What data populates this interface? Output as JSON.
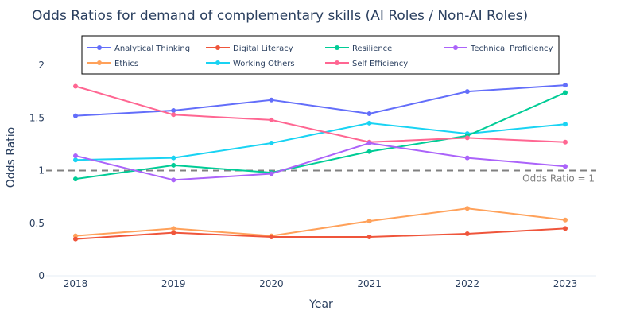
{
  "chart_data": {
    "type": "line",
    "title": "Odds Ratios for demand of complementary skills (AI Roles / Non-AI Roles)",
    "xlabel": "Year",
    "ylabel": "Odds Ratio",
    "x": [
      "2018",
      "2019",
      "2020",
      "2021",
      "2022",
      "2023"
    ],
    "ylim": [
      0,
      2.3
    ],
    "yticks": [
      "0",
      "0.5",
      "1",
      "1.5",
      "2"
    ],
    "grid": false,
    "legend_position": "top",
    "reference_line": {
      "y": 1,
      "label": "Odds Ratio = 1",
      "color": "#808080"
    },
    "series": [
      {
        "name": "Analytical Thinking",
        "color": "#636efa",
        "values": [
          1.52,
          1.57,
          1.67,
          1.54,
          1.75,
          1.81
        ]
      },
      {
        "name": "Ethics",
        "color": "#ffa15a",
        "values": [
          0.38,
          0.45,
          0.38,
          0.52,
          0.64,
          0.53
        ]
      },
      {
        "name": "Digital Literacy",
        "color": "#ef553b",
        "values": [
          0.35,
          0.41,
          0.37,
          0.37,
          0.4,
          0.45
        ]
      },
      {
        "name": "Working Others",
        "color": "#19d3f3",
        "values": [
          1.1,
          1.12,
          1.26,
          1.45,
          1.35,
          1.44
        ]
      },
      {
        "name": "Resilience",
        "color": "#00cc96",
        "values": [
          0.92,
          1.05,
          0.98,
          1.18,
          1.33,
          1.74
        ]
      },
      {
        "name": "Self Efficiency",
        "color": "#ff6692",
        "values": [
          1.8,
          1.53,
          1.48,
          1.27,
          1.31,
          1.27
        ]
      },
      {
        "name": "Technical Proficiency",
        "color": "#ab63fa",
        "values": [
          1.14,
          0.91,
          0.97,
          1.26,
          1.12,
          1.04
        ]
      }
    ]
  }
}
